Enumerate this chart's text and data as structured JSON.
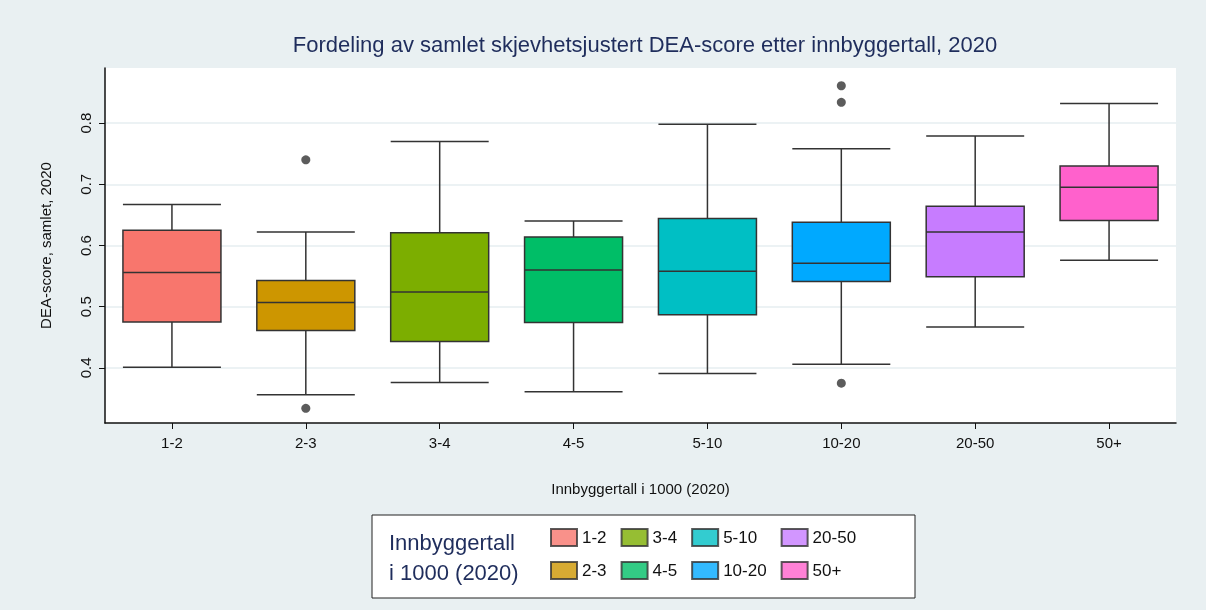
{
  "chart_data": {
    "type": "box",
    "title": "Fordeling av samlet skjevhetsjustert DEA-score etter innbyggertall, 2020",
    "xlabel": "Innbyggertall i 1000 (2020)",
    "ylabel": "DEA-score, samlet, 2020",
    "legend_title": "Innbyggertall\ni 1000 (2020)",
    "categories": [
      "1-2",
      "2-3",
      "3-4",
      "4-5",
      "5-10",
      "10-20",
      "20-50",
      "50+"
    ],
    "series": [
      {
        "name": "1-2",
        "color": "#f8766d",
        "boxes": [
          {
            "low": 0.401,
            "q1": 0.475,
            "median": 0.556,
            "q3": 0.625,
            "high": 0.667
          },
          null,
          null,
          null,
          null,
          null,
          null,
          null
        ]
      },
      {
        "name": "2-3",
        "color": "#cd9600",
        "boxes": [
          null,
          {
            "low": 0.356,
            "q1": 0.461,
            "median": 0.507,
            "q3": 0.543,
            "high": 0.622,
            "outliers": [
              0.74,
              0.334
            ]
          },
          null,
          null,
          null,
          null,
          null,
          null
        ]
      },
      {
        "name": "3-4",
        "color": "#7cae00",
        "boxes": [
          null,
          null,
          {
            "low": 0.376,
            "q1": 0.443,
            "median": 0.524,
            "q3": 0.621,
            "high": 0.77
          },
          null,
          null,
          null,
          null,
          null
        ]
      },
      {
        "name": "4-5",
        "color": "#00be67",
        "boxes": [
          null,
          null,
          null,
          {
            "low": 0.361,
            "q1": 0.474,
            "median": 0.56,
            "q3": 0.614,
            "high": 0.64
          },
          null,
          null,
          null,
          null
        ]
      },
      {
        "name": "5-10",
        "color": "#00bfc4",
        "boxes": [
          null,
          null,
          null,
          null,
          {
            "low": 0.391,
            "q1": 0.487,
            "median": 0.558,
            "q3": 0.644,
            "high": 0.798
          },
          null,
          null,
          null
        ]
      },
      {
        "name": "10-20",
        "color": "#00a9ff",
        "boxes": [
          null,
          null,
          null,
          null,
          null,
          {
            "low": 0.406,
            "q1": 0.541,
            "median": 0.571,
            "q3": 0.638,
            "high": 0.758,
            "outliers": [
              0.861,
              0.834,
              0.375
            ]
          },
          null,
          null
        ]
      },
      {
        "name": "20-50",
        "color": "#c77cff",
        "boxes": [
          null,
          null,
          null,
          null,
          null,
          null,
          {
            "low": 0.467,
            "q1": 0.549,
            "median": 0.622,
            "q3": 0.664,
            "high": 0.779
          },
          null
        ]
      },
      {
        "name": "50+",
        "color": "#ff61cc",
        "boxes": [
          null,
          null,
          null,
          null,
          null,
          null,
          null,
          {
            "low": 0.576,
            "q1": 0.641,
            "median": 0.695,
            "q3": 0.73,
            "high": 0.832
          }
        ]
      }
    ],
    "ylim": [
      0.31,
      0.89
    ],
    "yticks": [
      0.4,
      0.5,
      0.6,
      0.7,
      0.8
    ],
    "grid": "y",
    "legend": "bottom"
  }
}
